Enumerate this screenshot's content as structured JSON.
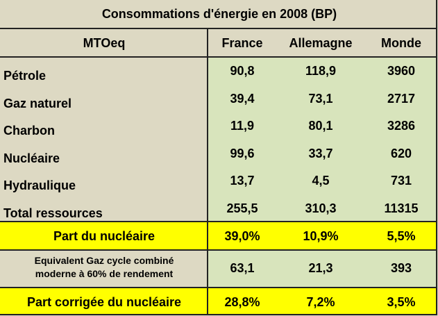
{
  "title": "Consommations d'énergie en 2008 (BP)",
  "header": {
    "unit": "MTOeq",
    "cols": [
      "France",
      "Allemagne",
      "Monde"
    ]
  },
  "rows": [
    {
      "label": "Pétrole",
      "values": [
        "90,8",
        "118,9",
        "3960"
      ]
    },
    {
      "label": "Gaz naturel",
      "values": [
        "39,4",
        "73,1",
        "2717"
      ]
    },
    {
      "label": "Charbon",
      "values": [
        "11,9",
        "80,1",
        "3286"
      ]
    },
    {
      "label": "Nucléaire",
      "values": [
        "99,6",
        "33,7",
        "620"
      ]
    },
    {
      "label": "Hydraulique",
      "values": [
        "13,7",
        "4,5",
        "731"
      ]
    },
    {
      "label": "Total ressources",
      "values": [
        "255,5",
        "310,3",
        "11315"
      ]
    }
  ],
  "part_nucleaire": {
    "label": "Part du nucléaire",
    "values": [
      "39,0%",
      "10,9%",
      "5,5%"
    ]
  },
  "equivalent": {
    "label_line1": "Equivalent Gaz cycle combiné",
    "label_line2": "moderne à 60% de rendement",
    "values": [
      "63,1",
      "21,3",
      "393"
    ]
  },
  "part_corrigee": {
    "label": "Part corrigée du nucléaire",
    "values": [
      "28,8%",
      "7,2%",
      "3,5%"
    ]
  }
}
